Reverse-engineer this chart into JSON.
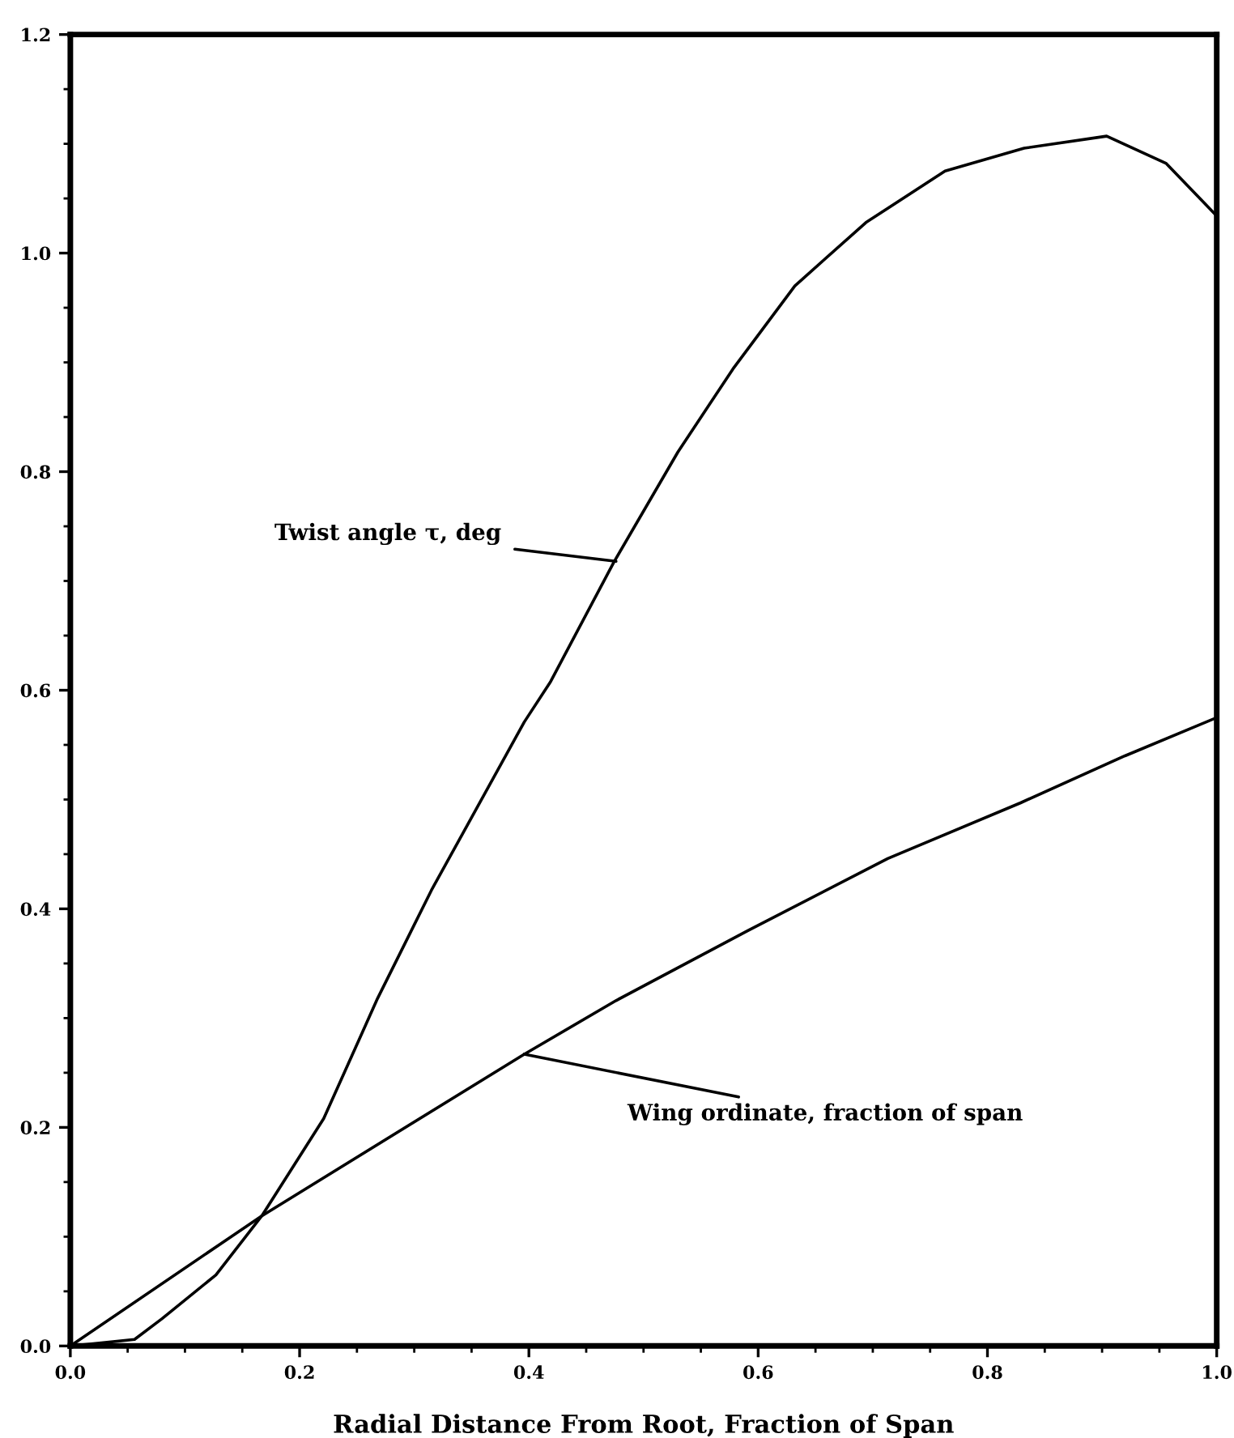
{
  "chart_data": {
    "type": "line",
    "xlabel": "Radial Distance From Root, Fraction of Span",
    "xlim": [
      0,
      1.0
    ],
    "ylim": [
      0,
      1.2
    ],
    "xticks": [
      {
        "value": 0,
        "label": "0.0"
      },
      {
        "value": 0.2,
        "label": "0.2"
      },
      {
        "value": 0.4,
        "label": "0.4"
      },
      {
        "value": 0.6,
        "label": "0.6"
      },
      {
        "value": 0.8,
        "label": "0.8"
      },
      {
        "value": 1.0,
        "label": "1.0"
      }
    ],
    "yticks": [
      {
        "value": 0,
        "label": "0.0"
      },
      {
        "value": 0.2,
        "label": "0.2"
      },
      {
        "value": 0.4,
        "label": "0.4"
      },
      {
        "value": 0.6,
        "label": "0.6"
      },
      {
        "value": 0.8,
        "label": "0.8"
      },
      {
        "value": 1.0,
        "label": "1.0"
      },
      {
        "value": 1.2,
        "label": "1.2"
      }
    ],
    "grid": false,
    "legend": false,
    "marker": "none",
    "line_style": "solid",
    "series": [
      {
        "color": "#000000",
        "x": [
          0,
          0.02,
          0.056,
          0.08,
          0.127,
          0.167,
          0.221,
          0.268,
          0.315,
          0.396,
          0.419,
          0.474,
          0.53,
          0.578,
          0.632,
          0.694,
          0.763,
          0.832,
          0.904,
          0.956,
          1.0
        ],
        "values": [
          0,
          0.002,
          0.006,
          0.025,
          0.065,
          0.119,
          0.208,
          0.318,
          0.417,
          0.571,
          0.608,
          0.717,
          0.818,
          0.894,
          0.97,
          1.028,
          1.075,
          1.096,
          1.107,
          1.082,
          1.034
        ]
      },
      {
        "color": "#000000",
        "x": [
          0,
          0.167,
          0.396,
          0.476,
          0.591,
          0.713,
          0.829,
          0.92,
          1.0
        ],
        "values": [
          0,
          0.119,
          0.267,
          0.316,
          0.38,
          0.446,
          0.497,
          0.54,
          0.575
        ]
      }
    ],
    "annotations": [
      {
        "text": "Twist angle τ, deg",
        "x": 0.476,
        "y": 0.718
      },
      {
        "text": "Wing ordinate, fraction of span",
        "x": 0.396,
        "y": 0.267
      }
    ]
  }
}
